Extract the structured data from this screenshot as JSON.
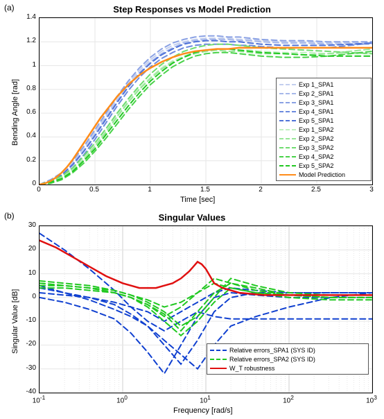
{
  "panel_a": {
    "label": "(a)",
    "title": "Step Responses vs Model Prediction",
    "xlabel": "Time [sec]",
    "ylabel": "Bending Angle [rad]",
    "xlim": [
      0,
      3
    ],
    "ylim": [
      0,
      1.4
    ],
    "xticks": [
      0,
      0.5,
      1,
      1.5,
      2,
      2.5,
      3
    ],
    "yticks": [
      0,
      0.2,
      0.4,
      0.6,
      0.8,
      1,
      1.2,
      1.4
    ],
    "grid_color": "#e6e6e6",
    "background_color": "#ffffff",
    "label_fontsize": 11,
    "title_fontsize": 13,
    "tick_fontsize": 10,
    "series": [
      {
        "name": "Exp 1_SPA1",
        "color": "#c3cfef",
        "style": "dashed",
        "width": 2,
        "x": [
          0,
          0.1,
          0.2,
          0.3,
          0.4,
          0.5,
          0.6,
          0.7,
          0.8,
          0.9,
          1.0,
          1.1,
          1.2,
          1.3,
          1.4,
          1.5,
          1.6,
          1.7,
          1.8,
          1.9,
          2.0,
          2.2,
          2.4,
          2.6,
          2.8,
          3.0
        ],
        "y": [
          0,
          0.03,
          0.08,
          0.18,
          0.3,
          0.44,
          0.58,
          0.72,
          0.85,
          0.96,
          1.05,
          1.12,
          1.17,
          1.2,
          1.22,
          1.23,
          1.23,
          1.23,
          1.22,
          1.22,
          1.21,
          1.2,
          1.2,
          1.19,
          1.19,
          1.19
        ]
      },
      {
        "name": "Exp 2_SPA1",
        "color": "#a7b8ea",
        "style": "dashed",
        "width": 2,
        "x": [
          0,
          0.1,
          0.2,
          0.3,
          0.4,
          0.5,
          0.6,
          0.7,
          0.8,
          0.9,
          1.0,
          1.1,
          1.2,
          1.3,
          1.4,
          1.5,
          1.6,
          1.7,
          1.8,
          1.9,
          2.0,
          2.2,
          2.4,
          2.6,
          2.8,
          3.0
        ],
        "y": [
          0,
          0.02,
          0.07,
          0.16,
          0.28,
          0.42,
          0.56,
          0.7,
          0.83,
          0.94,
          1.03,
          1.1,
          1.15,
          1.19,
          1.21,
          1.22,
          1.22,
          1.22,
          1.21,
          1.21,
          1.2,
          1.19,
          1.19,
          1.18,
          1.18,
          1.18
        ]
      },
      {
        "name": "Exp 3_SPA1",
        "color": "#8aa1e4",
        "style": "dashed",
        "width": 2,
        "x": [
          0,
          0.1,
          0.2,
          0.3,
          0.4,
          0.5,
          0.6,
          0.7,
          0.8,
          0.9,
          1.0,
          1.1,
          1.2,
          1.3,
          1.4,
          1.5,
          1.6,
          1.7,
          1.8,
          1.9,
          2.0,
          2.2,
          2.4,
          2.6,
          2.8,
          3.0
        ],
        "y": [
          0,
          0.04,
          0.1,
          0.2,
          0.32,
          0.46,
          0.6,
          0.74,
          0.87,
          0.98,
          1.07,
          1.14,
          1.19,
          1.22,
          1.24,
          1.25,
          1.25,
          1.24,
          1.24,
          1.23,
          1.22,
          1.21,
          1.21,
          1.2,
          1.2,
          1.2
        ]
      },
      {
        "name": "Exp 4_SPA1",
        "color": "#6d8ade",
        "style": "dashed",
        "width": 2,
        "x": [
          0,
          0.1,
          0.2,
          0.3,
          0.4,
          0.5,
          0.6,
          0.7,
          0.8,
          0.9,
          1.0,
          1.1,
          1.2,
          1.3,
          1.4,
          1.5,
          1.6,
          1.7,
          1.8,
          1.9,
          2.0,
          2.2,
          2.4,
          2.6,
          2.8,
          3.0
        ],
        "y": [
          0,
          0.02,
          0.06,
          0.14,
          0.25,
          0.38,
          0.52,
          0.66,
          0.79,
          0.9,
          0.99,
          1.06,
          1.11,
          1.15,
          1.17,
          1.18,
          1.18,
          1.18,
          1.17,
          1.17,
          1.16,
          1.15,
          1.15,
          1.15,
          1.17,
          1.19
        ]
      },
      {
        "name": "Exp 5_SPA1",
        "color": "#4f72d8",
        "style": "dashed",
        "width": 2,
        "x": [
          0,
          0.1,
          0.2,
          0.3,
          0.4,
          0.5,
          0.6,
          0.7,
          0.8,
          0.9,
          1.0,
          1.1,
          1.2,
          1.3,
          1.4,
          1.5,
          1.6,
          1.7,
          1.8,
          1.9,
          2.0,
          2.2,
          2.4,
          2.6,
          2.8,
          3.0
        ],
        "y": [
          0,
          0.03,
          0.08,
          0.17,
          0.28,
          0.41,
          0.55,
          0.69,
          0.82,
          0.93,
          1.02,
          1.09,
          1.14,
          1.18,
          1.2,
          1.21,
          1.21,
          1.2,
          1.2,
          1.19,
          1.18,
          1.17,
          1.17,
          1.17,
          1.18,
          1.19
        ]
      },
      {
        "name": "Exp 1_SPA2",
        "color": "#c0f0c0",
        "style": "dashed",
        "width": 2,
        "x": [
          0,
          0.1,
          0.2,
          0.3,
          0.4,
          0.5,
          0.6,
          0.7,
          0.8,
          0.9,
          1.0,
          1.1,
          1.2,
          1.3,
          1.4,
          1.5,
          1.6,
          1.7,
          1.8,
          1.9,
          2.0,
          2.2,
          2.4,
          2.6,
          2.8,
          3.0
        ],
        "y": [
          0,
          0.02,
          0.06,
          0.13,
          0.22,
          0.33,
          0.45,
          0.58,
          0.7,
          0.81,
          0.9,
          0.98,
          1.04,
          1.08,
          1.11,
          1.13,
          1.14,
          1.14,
          1.13,
          1.13,
          1.12,
          1.11,
          1.11,
          1.1,
          1.1,
          1.1
        ]
      },
      {
        "name": "Exp 2_SPA2",
        "color": "#98e698",
        "style": "dashed",
        "width": 2,
        "x": [
          0,
          0.1,
          0.2,
          0.3,
          0.4,
          0.5,
          0.6,
          0.7,
          0.8,
          0.9,
          1.0,
          1.1,
          1.2,
          1.3,
          1.4,
          1.5,
          1.6,
          1.7,
          1.8,
          1.9,
          2.0,
          2.2,
          2.4,
          2.6,
          2.8,
          3.0
        ],
        "y": [
          0,
          0.02,
          0.05,
          0.12,
          0.21,
          0.32,
          0.44,
          0.57,
          0.69,
          0.8,
          0.89,
          0.97,
          1.03,
          1.07,
          1.1,
          1.12,
          1.13,
          1.12,
          1.12,
          1.11,
          1.1,
          1.1,
          1.09,
          1.1,
          1.12,
          1.14
        ]
      },
      {
        "name": "Exp 3_SPA2",
        "color": "#70dc70",
        "style": "dashed",
        "width": 2,
        "x": [
          0,
          0.1,
          0.2,
          0.3,
          0.4,
          0.5,
          0.6,
          0.7,
          0.8,
          0.9,
          1.0,
          1.1,
          1.2,
          1.3,
          1.4,
          1.5,
          1.6,
          1.7,
          1.8,
          1.9,
          2.0,
          2.2,
          2.4,
          2.6,
          2.8,
          3.0
        ],
        "y": [
          0,
          0.03,
          0.07,
          0.14,
          0.24,
          0.35,
          0.47,
          0.6,
          0.72,
          0.83,
          0.93,
          1.01,
          1.07,
          1.12,
          1.15,
          1.17,
          1.18,
          1.18,
          1.17,
          1.16,
          1.15,
          1.14,
          1.13,
          1.12,
          1.11,
          1.1
        ]
      },
      {
        "name": "Exp 4_SPA2",
        "color": "#48d248",
        "style": "dashed",
        "width": 2,
        "x": [
          0,
          0.1,
          0.2,
          0.3,
          0.4,
          0.5,
          0.6,
          0.7,
          0.8,
          0.9,
          1.0,
          1.1,
          1.2,
          1.3,
          1.4,
          1.5,
          1.6,
          1.7,
          1.8,
          1.9,
          2.0,
          2.2,
          2.4,
          2.6,
          2.8,
          3.0
        ],
        "y": [
          0,
          0.01,
          0.04,
          0.1,
          0.18,
          0.28,
          0.39,
          0.51,
          0.63,
          0.74,
          0.84,
          0.92,
          0.99,
          1.04,
          1.08,
          1.1,
          1.11,
          1.11,
          1.1,
          1.09,
          1.08,
          1.07,
          1.07,
          1.08,
          1.1,
          1.12
        ]
      },
      {
        "name": "Exp 5_SPA2",
        "color": "#20c820",
        "style": "dashed",
        "width": 2,
        "x": [
          0,
          0.1,
          0.2,
          0.3,
          0.4,
          0.5,
          0.6,
          0.7,
          0.8,
          0.9,
          1.0,
          1.1,
          1.2,
          1.3,
          1.4,
          1.5,
          1.6,
          1.7,
          1.8,
          1.9,
          2.0,
          2.2,
          2.4,
          2.6,
          2.8,
          3.0
        ],
        "y": [
          0,
          0.02,
          0.05,
          0.11,
          0.2,
          0.3,
          0.42,
          0.54,
          0.66,
          0.77,
          0.87,
          0.95,
          1.02,
          1.07,
          1.11,
          1.13,
          1.14,
          1.14,
          1.13,
          1.12,
          1.11,
          1.1,
          1.09,
          1.08,
          1.08,
          1.08
        ]
      },
      {
        "name": "Model Prediction",
        "color": "#ff8c1a",
        "style": "solid",
        "width": 2.5,
        "x": [
          0,
          0.05,
          0.1,
          0.15,
          0.2,
          0.25,
          0.3,
          0.35,
          0.4,
          0.45,
          0.5,
          0.55,
          0.6,
          0.65,
          0.7,
          0.75,
          0.8,
          0.85,
          0.9,
          0.95,
          1.0,
          1.1,
          1.2,
          1.3,
          1.4,
          1.5,
          1.6,
          1.7,
          1.8,
          1.9,
          2.0,
          2.2,
          2.4,
          2.6,
          2.8,
          3.0
        ],
        "y": [
          0,
          0.01,
          0.03,
          0.06,
          0.1,
          0.15,
          0.21,
          0.28,
          0.35,
          0.42,
          0.49,
          0.56,
          0.62,
          0.68,
          0.74,
          0.79,
          0.84,
          0.88,
          0.92,
          0.95,
          0.98,
          1.03,
          1.07,
          1.1,
          1.12,
          1.13,
          1.14,
          1.14,
          1.15,
          1.15,
          1.15,
          1.15,
          1.15,
          1.15,
          1.15,
          1.15
        ]
      }
    ]
  },
  "panel_b": {
    "label": "(b)",
    "title": "Singular Values",
    "xlabel": "Frequency [rad/s]",
    "ylabel": "Singular Value [dB]",
    "xlim_log10": [
      -1,
      3
    ],
    "ylim": [
      -40,
      30
    ],
    "yticks": [
      -40,
      -30,
      -20,
      -10,
      0,
      10,
      20,
      30
    ],
    "xtick_labels": [
      "10^{-1}",
      "10^{0}",
      "10^{1}",
      "10^{2}",
      "10^{3}"
    ],
    "grid_color": "#e6e6e6",
    "background_color": "#ffffff",
    "label_fontsize": 11,
    "title_fontsize": 13,
    "tick_fontsize": 10,
    "legend_items": [
      {
        "label": "Relative errors_SPA1 (SYS ID)",
        "color": "#1040d0",
        "style": "dashed",
        "width": 2
      },
      {
        "label": "Relative errors_SPA2 (SYS ID)",
        "color": "#20c820",
        "style": "dashed",
        "width": 2
      },
      {
        "label": "W_T robustness",
        "color": "#e01010",
        "style": "solid",
        "width": 2.5
      }
    ],
    "series": [
      {
        "name": "spa1_1",
        "color": "#1040d0",
        "style": "dashed",
        "width": 2,
        "log10x": [
          -1,
          -0.7,
          -0.4,
          -0.1,
          0.1,
          0.3,
          0.5,
          0.7,
          0.9,
          1.1,
          1.3,
          1.6,
          2.0,
          2.5,
          3.0
        ],
        "y": [
          27,
          20,
          12,
          3,
          -4,
          -10,
          -14,
          -10,
          -6,
          -8,
          -9,
          -9,
          -9,
          -9,
          -9
        ]
      },
      {
        "name": "spa1_2",
        "color": "#1040d0",
        "style": "dashed",
        "width": 2,
        "log10x": [
          -1,
          -0.7,
          -0.4,
          -0.1,
          0.1,
          0.3,
          0.5,
          0.7,
          0.9,
          1.1,
          1.3,
          1.6,
          2.0,
          2.5,
          3.0
        ],
        "y": [
          5,
          2,
          -1,
          -5,
          -8,
          -12,
          -18,
          -24,
          -30,
          -20,
          -12,
          -8,
          -4,
          0,
          2
        ]
      },
      {
        "name": "spa1_3",
        "color": "#1040d0",
        "style": "dashed",
        "width": 2,
        "log10x": [
          -1,
          -0.7,
          -0.4,
          -0.1,
          0.1,
          0.3,
          0.5,
          0.7,
          0.9,
          1.1,
          1.3,
          1.6,
          2.0,
          2.5,
          3.0
        ],
        "y": [
          4,
          2,
          0,
          -3,
          -7,
          -12,
          -20,
          -28,
          -18,
          -6,
          0,
          2,
          2,
          2,
          2
        ]
      },
      {
        "name": "spa1_4",
        "color": "#1040d0",
        "style": "dashed",
        "width": 2,
        "log10x": [
          -1,
          -0.7,
          -0.4,
          -0.1,
          0.1,
          0.3,
          0.5,
          0.7,
          0.9,
          1.1,
          1.3,
          1.6,
          2.0,
          2.5,
          3.0
        ],
        "y": [
          0,
          -2,
          -5,
          -9,
          -15,
          -23,
          -32,
          -20,
          -8,
          0,
          2,
          1,
          0,
          0,
          0
        ]
      },
      {
        "name": "spa1_5",
        "color": "#1040d0",
        "style": "dashed",
        "width": 2,
        "log10x": [
          -1,
          -0.7,
          -0.4,
          -0.1,
          0.1,
          0.3,
          0.5,
          0.7,
          0.9,
          1.1,
          1.3,
          1.6,
          2.0,
          2.5,
          3.0
        ],
        "y": [
          2,
          1,
          0,
          -2,
          -4,
          -6,
          -10,
          -6,
          -2,
          2,
          4,
          3,
          2,
          2,
          2
        ]
      },
      {
        "name": "spa2_1",
        "color": "#20c820",
        "style": "dashed",
        "width": 2,
        "log10x": [
          -1,
          -0.7,
          -0.4,
          -0.1,
          0.1,
          0.3,
          0.5,
          0.7,
          0.9,
          1.1,
          1.3,
          1.6,
          2.0,
          2.5,
          3.0
        ],
        "y": [
          6,
          5,
          4,
          2,
          0,
          -3,
          -8,
          -4,
          2,
          6,
          4,
          2,
          1,
          1,
          1
        ]
      },
      {
        "name": "spa2_2",
        "color": "#20c820",
        "style": "dashed",
        "width": 2,
        "log10x": [
          -1,
          -0.7,
          -0.4,
          -0.1,
          0.1,
          0.3,
          0.5,
          0.7,
          0.9,
          1.1,
          1.3,
          1.6,
          2.0,
          2.5,
          3.0
        ],
        "y": [
          5,
          5,
          4,
          3,
          1,
          -2,
          -6,
          -12,
          -8,
          0,
          8,
          5,
          2,
          1,
          1
        ]
      },
      {
        "name": "spa2_3",
        "color": "#20c820",
        "style": "dashed",
        "width": 2,
        "log10x": [
          -1,
          -0.7,
          -0.4,
          -0.1,
          0.1,
          0.3,
          0.5,
          0.7,
          0.9,
          1.1,
          1.3,
          1.6,
          2.0,
          2.5,
          3.0
        ],
        "y": [
          7,
          6,
          5,
          3,
          1,
          -1,
          -4,
          -2,
          2,
          8,
          6,
          3,
          1,
          0,
          0
        ]
      },
      {
        "name": "spa2_4",
        "color": "#20c820",
        "style": "dashed",
        "width": 2,
        "log10x": [
          -1,
          -0.7,
          -0.4,
          -0.1,
          0.1,
          0.3,
          0.5,
          0.7,
          0.9,
          1.1,
          1.3,
          1.6,
          2.0,
          2.5,
          3.0
        ],
        "y": [
          4,
          4,
          3,
          2,
          0,
          -4,
          -10,
          -16,
          -10,
          -2,
          4,
          2,
          0,
          -1,
          -1
        ]
      },
      {
        "name": "spa2_5",
        "color": "#20c820",
        "style": "dashed",
        "width": 2,
        "log10x": [
          -1,
          -0.7,
          -0.4,
          -0.1,
          0.1,
          0.3,
          0.5,
          0.7,
          0.9,
          1.1,
          1.3,
          1.6,
          2.0,
          2.5,
          3.0
        ],
        "y": [
          6,
          5,
          4,
          2,
          0,
          -3,
          -7,
          -14,
          -6,
          2,
          6,
          4,
          1,
          0,
          0
        ]
      },
      {
        "name": "W_T",
        "color": "#e01010",
        "style": "solid",
        "width": 2.5,
        "log10x": [
          -1,
          -0.8,
          -0.6,
          -0.4,
          -0.2,
          0.0,
          0.1,
          0.2,
          0.3,
          0.4,
          0.5,
          0.6,
          0.7,
          0.8,
          0.85,
          0.9,
          0.95,
          1.0,
          1.05,
          1.1,
          1.2,
          1.4,
          1.7,
          2.0,
          2.5,
          3.0
        ],
        "y": [
          24,
          21,
          17,
          13,
          9,
          6,
          5,
          4,
          4,
          4,
          5,
          6,
          8,
          11,
          13,
          15,
          14,
          12,
          9,
          6,
          4,
          2,
          1,
          1,
          1,
          1
        ]
      }
    ]
  }
}
